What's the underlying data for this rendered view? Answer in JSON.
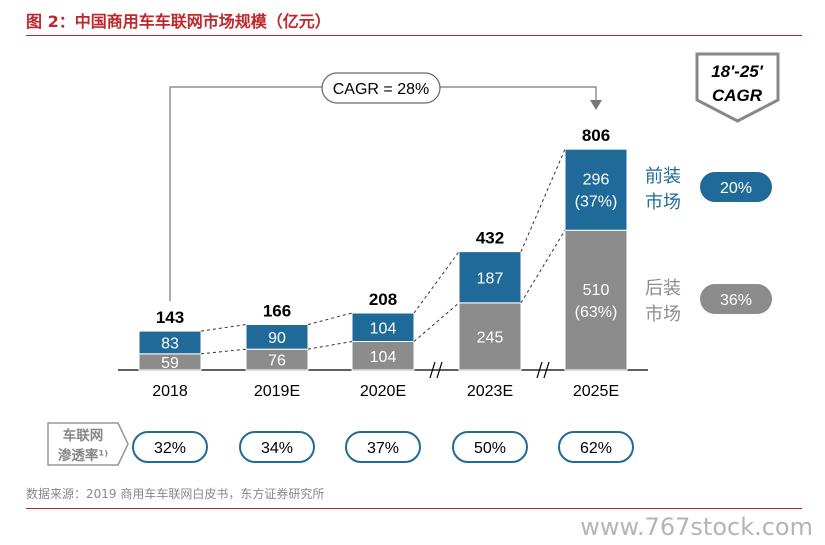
{
  "title": "图 2：中国商用车车联网市场规模（亿元）",
  "source": "数据来源：2019 商用车车联网白皮书，东方证券研究所",
  "watermark": "www.767stock.com",
  "colors": {
    "front": "#1f6a99",
    "after": "#8c8c8c",
    "accent": "#c0272d",
    "front_text": "#1f6a99",
    "after_text": "#8c8c8c"
  },
  "chart_data": {
    "type": "bar",
    "stacked": true,
    "categories": [
      "2018",
      "2019E",
      "2020E",
      "2023E",
      "2025E"
    ],
    "series": [
      {
        "name": "后装市场",
        "values": [
          59,
          76,
          104,
          245,
          510
        ],
        "labels": [
          "59",
          "76",
          "104",
          "245",
          "510\n(63%)"
        ]
      },
      {
        "name": "前装市场",
        "values": [
          83,
          90,
          104,
          187,
          296
        ],
        "labels": [
          "83",
          "90",
          "104",
          "187",
          "296\n(37%)"
        ]
      }
    ],
    "totals": [
      143,
      166,
      208,
      432,
      806
    ],
    "axis_breaks_after": [
      "2020E",
      "2023E"
    ],
    "cagr_annotation": "CAGR = 28%",
    "cagr_box": {
      "label": "18'-25'\nCAGR"
    },
    "segment_cagr": [
      {
        "series": "前装市场",
        "label": "前装\n市场",
        "value": "20%"
      },
      {
        "series": "后装市场",
        "label": "后装\n市场",
        "value": "36%"
      }
    ],
    "penetration": {
      "label": "车联网\n渗透率¹⁾",
      "values": [
        "32%",
        "34%",
        "37%",
        "50%",
        "62%"
      ]
    }
  }
}
